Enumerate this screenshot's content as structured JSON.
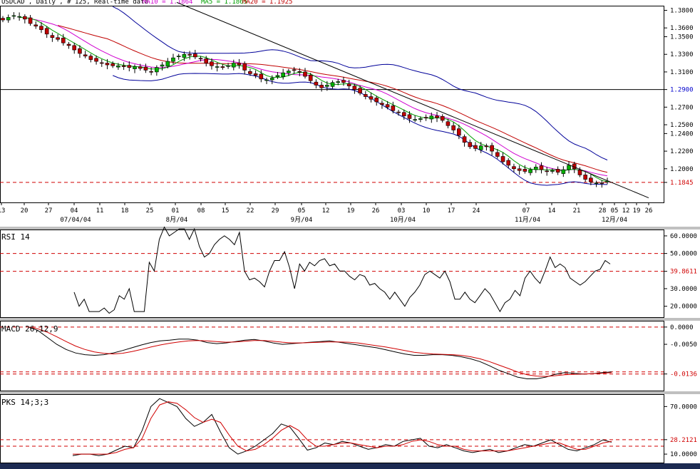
{
  "header": {
    "symbol_line": "USDCAD , Daily , # 125, Real-time data",
    "ma10_label": "MA10 = 1.1864",
    "ma5_label": "MA5 = 1.1865",
    "ma20_label": "MA20 = 1.1925"
  },
  "colors": {
    "candle_up": "#00b000",
    "candle_down": "#c00000",
    "ma5": "#00a000",
    "ma10": "#d000d0",
    "ma20": "#c00000",
    "bollinger": "#000099",
    "trendline": "#000000",
    "reference_dash": "#d00000",
    "indicator_primary": "#000000",
    "indicator_signal": "#d00000"
  },
  "chart_data": [
    {
      "type": "candlestick",
      "panel": "price",
      "yticks": [
        1.38,
        1.36,
        1.35,
        1.33,
        1.31,
        1.29,
        1.27,
        1.25,
        1.24,
        1.22,
        1.2,
        1.1845
      ],
      "ytick_labels": [
        "1.3800",
        "1.3600",
        "1.3500",
        "1.3300",
        "1.3100",
        "1.2900",
        "1.2700",
        "1.2500",
        "1.2400",
        "1.2200",
        "1.2000",
        "1.1845"
      ],
      "ylim": [
        1.165,
        1.382
      ],
      "x_day_labels": [
        "13",
        "20",
        "27",
        "04",
        "11",
        "18",
        "25",
        "01",
        "08",
        "15",
        "22",
        "29",
        "05",
        "12",
        "19",
        "26",
        "03",
        "10",
        "17",
        "24",
        "07",
        "14",
        "21",
        "28",
        "05",
        "12",
        "19",
        "26"
      ],
      "x_month_labels": [
        "07/04/04",
        "8月/04",
        "9月/04",
        "10月/04",
        "11月/04",
        "12月/04"
      ],
      "reference_lines": [
        {
          "value": 1.29,
          "color": "#0000cc",
          "style": "solid"
        },
        {
          "value": 1.1845,
          "color": "#d00000",
          "style": "dashed"
        }
      ],
      "trendline": {
        "from_value": 1.389,
        "to_value": 1.167
      },
      "closes": [
        1.369,
        1.372,
        1.374,
        1.373,
        1.37,
        1.365,
        1.362,
        1.358,
        1.353,
        1.349,
        1.347,
        1.343,
        1.34,
        1.335,
        1.331,
        1.328,
        1.324,
        1.322,
        1.32,
        1.318,
        1.317,
        1.317,
        1.316,
        1.315,
        1.316,
        1.314,
        1.312,
        1.31,
        1.315,
        1.318,
        1.322,
        1.326,
        1.328,
        1.33,
        1.329,
        1.327,
        1.325,
        1.32,
        1.317,
        1.316,
        1.315,
        1.317,
        1.32,
        1.318,
        1.312,
        1.308,
        1.306,
        1.302,
        1.301,
        1.303,
        1.306,
        1.309,
        1.311,
        1.312,
        1.31,
        1.305,
        1.3,
        1.295,
        1.292,
        1.295,
        1.298,
        1.299,
        1.298,
        1.294,
        1.29,
        1.286,
        1.282,
        1.279,
        1.276,
        1.273,
        1.27,
        1.266,
        1.264,
        1.26,
        1.257,
        1.256,
        1.257,
        1.258,
        1.26,
        1.258,
        1.255,
        1.249,
        1.244,
        1.238,
        1.23,
        1.225,
        1.223,
        1.226,
        1.225,
        1.22,
        1.214,
        1.208,
        1.204,
        1.2,
        1.198,
        1.197,
        1.199,
        1.202,
        1.199,
        1.197,
        1.198,
        1.196,
        1.199,
        1.204,
        1.2,
        1.193,
        1.188,
        1.185,
        1.184,
        1.1835,
        1.186
      ]
    },
    {
      "type": "line",
      "panel": "rsi",
      "title": "RSI 14",
      "yticks": [
        60,
        50,
        39.8611,
        30,
        20
      ],
      "ytick_labels": [
        "60.0000",
        "50.0000",
        "39.8611",
        "30.0000",
        "20.0000"
      ],
      "ylim": [
        15,
        62
      ],
      "reference_lines": [
        50,
        39.8611
      ],
      "values": [
        28,
        20,
        24,
        17,
        17,
        17,
        19,
        16,
        18,
        26,
        24,
        30,
        17,
        17,
        17,
        45,
        40,
        58,
        65,
        60,
        62,
        64,
        64,
        58,
        64,
        54,
        48,
        50,
        55,
        58,
        60,
        58,
        55,
        62,
        40,
        35,
        36,
        34,
        31,
        40,
        46,
        46,
        51,
        42,
        30,
        44,
        40,
        45,
        43,
        46,
        47,
        43,
        44,
        40,
        40,
        37,
        35,
        38,
        37,
        32,
        33,
        30,
        28,
        24,
        28,
        24,
        20,
        25,
        28,
        32,
        38,
        40,
        38,
        36,
        40,
        34,
        24,
        24,
        28,
        24,
        22,
        26,
        30,
        27,
        22,
        17,
        22,
        24,
        29,
        26,
        36,
        40,
        36,
        33,
        40,
        48,
        42,
        44,
        42,
        36,
        34,
        32,
        34,
        37,
        40,
        41,
        46,
        44
      ]
    },
    {
      "type": "line",
      "panel": "macd",
      "title": "MACD 26,12,9",
      "yticks": [
        0.0,
        -0.005,
        -0.0136
      ],
      "ytick_labels": [
        "0.0000",
        "-0.0050",
        "-0.0136"
      ],
      "ylim": [
        -0.018,
        0.001
      ],
      "reference_lines": [
        0.0,
        -0.013,
        -0.0136
      ],
      "series": [
        {
          "values": [
            0.0,
            -0.001,
            -0.003,
            -0.005,
            -0.0065,
            -0.0075,
            -0.008,
            -0.0082,
            -0.008,
            -0.0075,
            -0.0068,
            -0.006,
            -0.0052,
            -0.0045,
            -0.004,
            -0.0038,
            -0.0035,
            -0.0035,
            -0.0038,
            -0.0045,
            -0.0048,
            -0.0046,
            -0.0042,
            -0.0038,
            -0.0036,
            -0.004,
            -0.0046,
            -0.005,
            -0.0048,
            -0.0046,
            -0.0044,
            -0.0042,
            -0.004,
            -0.0044,
            -0.0048,
            -0.0052,
            -0.0056,
            -0.006,
            -0.0066,
            -0.0072,
            -0.0078,
            -0.0082,
            -0.0082,
            -0.008,
            -0.008,
            -0.0082,
            -0.0086,
            -0.0092,
            -0.01,
            -0.0112,
            -0.0125,
            -0.0135,
            -0.0145,
            -0.015,
            -0.015,
            -0.0145,
            -0.0137,
            -0.0132,
            -0.0134,
            -0.0136,
            -0.0135,
            -0.0132,
            -0.013
          ]
        },
        {
          "values": [
            0.0,
            -0.0005,
            -0.0015,
            -0.0028,
            -0.0042,
            -0.0055,
            -0.0065,
            -0.0072,
            -0.0076,
            -0.0078,
            -0.0076,
            -0.0071,
            -0.0065,
            -0.0058,
            -0.0052,
            -0.0047,
            -0.0043,
            -0.004,
            -0.0039,
            -0.004,
            -0.0042,
            -0.0044,
            -0.0043,
            -0.0041,
            -0.0039,
            -0.0039,
            -0.0041,
            -0.0044,
            -0.0046,
            -0.0046,
            -0.0045,
            -0.0044,
            -0.0043,
            -0.0043,
            -0.0044,
            -0.0046,
            -0.005,
            -0.0054,
            -0.0058,
            -0.0063,
            -0.0068,
            -0.0073,
            -0.0076,
            -0.0078,
            -0.0079,
            -0.008,
            -0.0082,
            -0.0086,
            -0.0092,
            -0.01,
            -0.011,
            -0.012,
            -0.013,
            -0.0138,
            -0.0142,
            -0.0143,
            -0.0141,
            -0.0138,
            -0.0137,
            -0.0136,
            -0.0135,
            -0.0134,
            -0.0132
          ]
        }
      ]
    },
    {
      "type": "line",
      "panel": "stochastic",
      "title": "PKS 14;3;3",
      "yticks": [
        70,
        28.2121,
        10
      ],
      "ytick_labels": [
        "70.0000",
        "28.2121",
        "10.0000"
      ],
      "ylim": [
        2,
        82
      ],
      "reference_lines": [
        28.2121,
        20
      ],
      "series": [
        {
          "values": [
            8,
            10,
            10,
            8,
            10,
            15,
            20,
            18,
            40,
            70,
            80,
            75,
            70,
            55,
            45,
            50,
            60,
            38,
            18,
            10,
            14,
            20,
            28,
            36,
            48,
            44,
            30,
            15,
            18,
            24,
            22,
            26,
            24,
            20,
            16,
            18,
            22,
            20,
            26,
            28,
            30,
            20,
            18,
            22,
            18,
            14,
            12,
            14,
            16,
            12,
            14,
            18,
            22,
            20,
            24,
            28,
            22,
            16,
            14,
            18,
            22,
            28,
            25
          ]
        },
        {
          "values": [
            10,
            10,
            10,
            10,
            10,
            12,
            16,
            18,
            30,
            55,
            72,
            76,
            74,
            66,
            56,
            50,
            54,
            50,
            34,
            20,
            14,
            16,
            22,
            30,
            40,
            46,
            40,
            28,
            20,
            20,
            22,
            24,
            24,
            22,
            20,
            18,
            20,
            20,
            22,
            26,
            28,
            26,
            22,
            20,
            20,
            16,
            14,
            14,
            14,
            14,
            14,
            16,
            18,
            20,
            22,
            24,
            24,
            20,
            16,
            16,
            20,
            24,
            26
          ]
        }
      ]
    }
  ]
}
